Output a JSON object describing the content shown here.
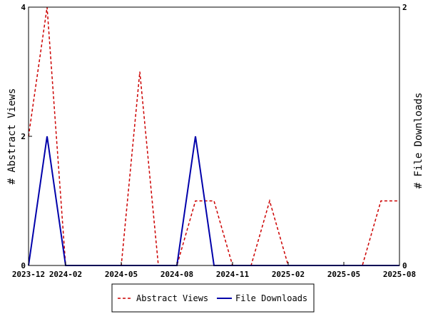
{
  "chart_data": {
    "type": "line",
    "x_dates": [
      "2023-12",
      "2024-01",
      "2024-02",
      "2024-03",
      "2024-04",
      "2024-05",
      "2024-06",
      "2024-07",
      "2024-08",
      "2024-09",
      "2024-10",
      "2024-11",
      "2024-12",
      "2025-01",
      "2025-02",
      "2025-03",
      "2025-04",
      "2025-05",
      "2025-06",
      "2025-07",
      "2025-08"
    ],
    "series": [
      {
        "name": "Abstract Views",
        "axis": "left",
        "color": "#cc0000",
        "dashed": true,
        "values": [
          2,
          4,
          0,
          0,
          0,
          0,
          3,
          0,
          0,
          1,
          1,
          0,
          0,
          1,
          0,
          0,
          0,
          0,
          0,
          1,
          1
        ]
      },
      {
        "name": "File Downloads",
        "axis": "right",
        "color": "#0000aa",
        "dashed": false,
        "values": [
          0,
          1,
          0,
          0,
          0,
          0,
          0,
          0,
          0,
          1,
          0,
          0,
          0,
          0,
          0,
          0,
          0,
          0,
          0,
          0,
          0
        ]
      }
    ],
    "x_ticks": [
      "2023-12",
      "2024-02",
      "2024-05",
      "2024-08",
      "2024-11",
      "2025-02",
      "2025-05",
      "2025-08"
    ],
    "y_left": {
      "label": "# Abstract Views",
      "range": [
        0,
        4
      ],
      "ticks": [
        "0",
        "2",
        "4"
      ]
    },
    "y_right": {
      "label": "# File Downloads",
      "range": [
        0,
        2
      ],
      "ticks": [
        "0",
        "2"
      ]
    },
    "legend": {
      "position": "bottom"
    }
  }
}
